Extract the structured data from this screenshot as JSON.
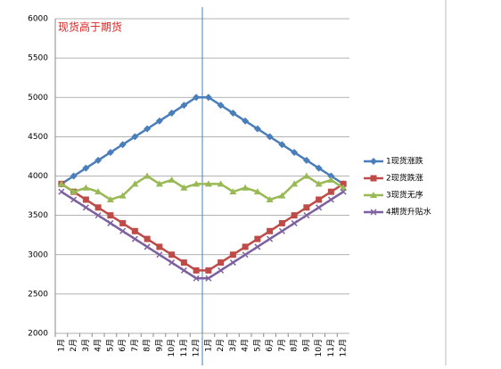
{
  "chart_data": {
    "type": "line",
    "annotation": "现货高于期货",
    "categories": [
      "1月",
      "2月",
      "3月",
      "4月",
      "5月",
      "6月",
      "7月",
      "8月",
      "9月",
      "10月",
      "11月",
      "12月",
      "1月",
      "2月",
      "3月",
      "4月",
      "5月",
      "6月",
      "7月",
      "8月",
      "9月",
      "10月",
      "11月",
      "12月"
    ],
    "series": [
      {
        "name": "1现货涨跌",
        "color": "#4a7ebb",
        "marker": "diamond",
        "values": [
          3900,
          4000,
          4100,
          4200,
          4300,
          4400,
          4500,
          4600,
          4700,
          4800,
          4900,
          5000,
          5000,
          4900,
          4800,
          4700,
          4600,
          4500,
          4400,
          4300,
          4200,
          4100,
          4000,
          3900
        ]
      },
      {
        "name": "2现货跌涨",
        "color": "#be4b48",
        "marker": "square",
        "values": [
          3900,
          3800,
          3700,
          3600,
          3500,
          3400,
          3300,
          3200,
          3100,
          3000,
          2900,
          2800,
          2800,
          2900,
          3000,
          3100,
          3200,
          3300,
          3400,
          3500,
          3600,
          3700,
          3800,
          3900
        ]
      },
      {
        "name": "3现货无序",
        "color": "#98b954",
        "marker": "triangle",
        "values": [
          3900,
          3800,
          3850,
          3800,
          3700,
          3750,
          3900,
          4000,
          3900,
          3950,
          3850,
          3900,
          3900,
          3900,
          3800,
          3850,
          3800,
          3700,
          3750,
          3900,
          4000,
          3900,
          3950,
          3850
        ]
      },
      {
        "name": "4期货升贴水",
        "color": "#7d60a0",
        "marker": "x",
        "values": [
          3800,
          3700,
          3600,
          3500,
          3400,
          3300,
          3200,
          3100,
          3000,
          2900,
          2800,
          2700,
          2700,
          2800,
          2900,
          3000,
          3100,
          3200,
          3300,
          3400,
          3500,
          3600,
          3700,
          3800
        ]
      }
    ],
    "ylim": [
      2000,
      6000
    ],
    "yticks": [
      2000,
      2500,
      3000,
      3500,
      4000,
      4500,
      5000,
      5500,
      6000
    ],
    "grid": true,
    "legend": "right"
  }
}
